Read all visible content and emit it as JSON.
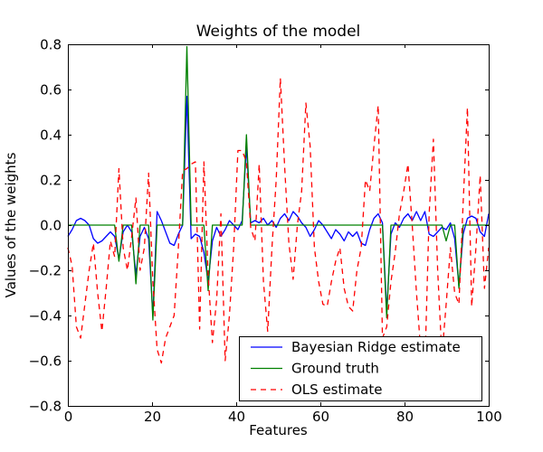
{
  "chart_data": {
    "type": "line",
    "title": "Weights of the model",
    "xlabel": "Features",
    "ylabel": "Values of the weights",
    "xlim": [
      0,
      100
    ],
    "ylim": [
      -0.8,
      0.8
    ],
    "xticks": [
      0,
      20,
      40,
      60,
      80,
      100
    ],
    "yticks": [
      -0.8,
      -0.6,
      -0.4,
      -0.2,
      0.0,
      0.2,
      0.4,
      0.6,
      0.8
    ],
    "grid": false,
    "legend_position": "lower right",
    "background": "#ffffff",
    "axis_color": "#000000",
    "x": [
      0,
      1,
      2,
      3,
      4,
      5,
      6,
      7,
      8,
      9,
      10,
      11,
      12,
      13,
      14,
      15,
      16,
      17,
      18,
      19,
      20,
      21,
      22,
      23,
      24,
      25,
      26,
      27,
      28,
      29,
      30,
      31,
      32,
      33,
      34,
      35,
      36,
      37,
      38,
      39,
      40,
      41,
      42,
      43,
      44,
      45,
      46,
      47,
      48,
      49,
      50,
      51,
      52,
      53,
      54,
      55,
      56,
      57,
      58,
      59,
      60,
      61,
      62,
      63,
      64,
      65,
      66,
      67,
      68,
      69,
      70,
      71,
      72,
      73,
      74,
      75,
      76,
      77,
      78,
      79,
      80,
      81,
      82,
      83,
      84,
      85,
      86,
      87,
      88,
      89,
      90,
      91,
      92,
      93,
      94,
      95,
      96,
      97,
      98,
      99
    ],
    "series": [
      {
        "name": "Bayesian Ridge estimate",
        "color": "#0000ff",
        "style": "solid",
        "values": [
          -0.05,
          -0.02,
          0.02,
          0.03,
          0.02,
          0.0,
          -0.06,
          -0.08,
          -0.07,
          -0.05,
          -0.03,
          -0.05,
          -0.15,
          -0.03,
          0.0,
          -0.03,
          -0.22,
          -0.05,
          -0.01,
          -0.06,
          -0.4,
          0.06,
          0.02,
          -0.03,
          -0.08,
          -0.09,
          -0.04,
          0.0,
          0.57,
          -0.06,
          -0.04,
          -0.05,
          -0.12,
          -0.25,
          -0.07,
          -0.01,
          -0.05,
          -0.02,
          0.02,
          0.0,
          -0.02,
          0.02,
          0.35,
          0.01,
          0.02,
          0.01,
          0.03,
          0.0,
          0.02,
          -0.01,
          0.03,
          0.05,
          0.02,
          0.06,
          0.04,
          0.01,
          -0.01,
          -0.05,
          -0.02,
          0.02,
          0.0,
          -0.03,
          -0.06,
          -0.02,
          -0.04,
          -0.07,
          -0.03,
          -0.05,
          -0.03,
          -0.08,
          -0.09,
          -0.02,
          0.03,
          0.05,
          0.01,
          -0.38,
          -0.04,
          0.01,
          -0.01,
          0.03,
          0.05,
          0.02,
          0.06,
          0.02,
          0.06,
          -0.04,
          -0.05,
          -0.03,
          -0.01,
          -0.02,
          0.01,
          -0.06,
          -0.27,
          -0.04,
          0.03,
          0.04,
          0.03,
          -0.03,
          -0.05,
          0.05
        ]
      },
      {
        "name": "Ground truth",
        "color": "#008000",
        "style": "solid",
        "values": [
          0,
          0,
          0,
          0,
          0,
          0,
          0,
          0,
          0,
          0,
          0,
          0,
          -0.16,
          0,
          0,
          0,
          -0.26,
          0,
          0,
          0,
          -0.42,
          0,
          0,
          0,
          0,
          0,
          0,
          0,
          0.79,
          0,
          0,
          0,
          0,
          -0.29,
          0,
          0,
          0,
          0,
          0,
          0,
          0,
          0,
          0.4,
          0,
          0,
          0,
          0,
          0,
          0,
          0,
          0,
          0,
          0,
          0,
          0,
          0,
          0,
          0,
          0,
          0,
          0,
          0,
          0,
          0,
          0,
          0,
          0,
          0,
          0,
          0,
          0,
          0,
          0,
          0,
          0,
          -0.41,
          0,
          0,
          0,
          0,
          0,
          0,
          0,
          0,
          0,
          0,
          0,
          0,
          0,
          -0.07,
          0,
          0,
          -0.28,
          0,
          0,
          0,
          0,
          0,
          0,
          0
        ]
      },
      {
        "name": "OLS estimate",
        "color": "#ff0000",
        "style": "dashed",
        "values": [
          -0.1,
          -0.18,
          -0.45,
          -0.5,
          -0.35,
          -0.2,
          -0.08,
          -0.3,
          -0.47,
          -0.28,
          -0.07,
          -0.14,
          0.25,
          -0.1,
          -0.2,
          -0.05,
          0.12,
          -0.2,
          -0.1,
          0.23,
          -0.25,
          -0.55,
          -0.61,
          -0.5,
          -0.45,
          -0.4,
          -0.1,
          0.24,
          0.25,
          0.27,
          0.28,
          -0.46,
          0.28,
          -0.22,
          -0.52,
          -0.33,
          0.05,
          -0.6,
          -0.4,
          -0.1,
          0.33,
          0.33,
          0.28,
          -0.01,
          -0.07,
          0.27,
          -0.25,
          -0.47,
          -0.1,
          0.2,
          0.65,
          0.26,
          -0.08,
          -0.24,
          0.0,
          0.15,
          0.54,
          0.35,
          -0.1,
          -0.25,
          -0.35,
          -0.36,
          -0.25,
          -0.16,
          -0.1,
          -0.28,
          -0.36,
          -0.38,
          -0.2,
          -0.1,
          0.2,
          0.15,
          0.35,
          0.53,
          -0.5,
          -0.45,
          -0.25,
          -0.12,
          0.05,
          0.15,
          0.27,
          0.0,
          -0.3,
          -0.55,
          -0.63,
          0.05,
          0.38,
          -0.2,
          -0.58,
          -0.35,
          -0.1,
          -0.3,
          -0.35,
          0.1,
          0.52,
          -0.36,
          -0.1,
          0.22,
          -0.28,
          -0.1
        ]
      }
    ]
  }
}
